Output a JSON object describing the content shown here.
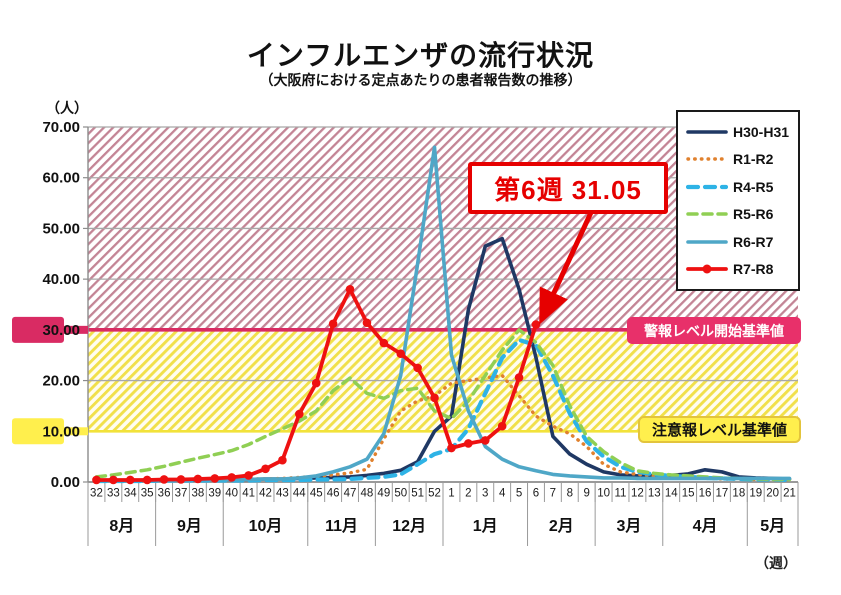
{
  "title": "インフルエンザの流行状況",
  "subtitle": "（大阪府における定点あたりの患者報告数の推移）",
  "y_axis_unit": "（人）",
  "x_axis_unit": "（週）",
  "annotation": {
    "label": "第6週 31.05",
    "week": "6",
    "value": 31.05
  },
  "thresholds": {
    "alert": {
      "value": 30,
      "label": "警報レベル開始基準値"
    },
    "caution": {
      "value": 10,
      "label": "注意報レベル基準値"
    }
  },
  "colors": {
    "alert_line": "#d92b63",
    "alert_band_hatch": "#c38495",
    "caution_line": "#f2e23b",
    "caution_band_hatch": "#f1e04a",
    "caution_band_bg": "#fffdf0",
    "grid": "#a8a8a8",
    "axis": "#8c8c8c",
    "annotation_red": "#e60000"
  },
  "chart_data": {
    "type": "line",
    "title": "インフルエンザの流行状況",
    "ylabel": "（人）",
    "xlabel": "（週）",
    "ylim": [
      0,
      70
    ],
    "grid": true,
    "legend_position": "top-right",
    "yticks": [
      "0.00",
      "10.00",
      "20.00",
      "30.00",
      "40.00",
      "50.00",
      "60.00",
      "70.00"
    ],
    "weeks": [
      "32",
      "33",
      "34",
      "35",
      "36",
      "37",
      "38",
      "39",
      "40",
      "41",
      "42",
      "43",
      "44",
      "45",
      "46",
      "47",
      "48",
      "49",
      "50",
      "51",
      "52",
      "1",
      "2",
      "3",
      "4",
      "5",
      "6",
      "7",
      "8",
      "9",
      "10",
      "11",
      "12",
      "13",
      "14",
      "15",
      "16",
      "17",
      "18",
      "19",
      "20",
      "21"
    ],
    "months": [
      {
        "label": "8月",
        "span": 4
      },
      {
        "label": "9月",
        "span": 4
      },
      {
        "label": "10月",
        "span": 5
      },
      {
        "label": "11月",
        "span": 4
      },
      {
        "label": "12月",
        "span": 4
      },
      {
        "label": "1月",
        "span": 5
      },
      {
        "label": "2月",
        "span": 4
      },
      {
        "label": "3月",
        "span": 4
      },
      {
        "label": "4月",
        "span": 5
      },
      {
        "label": "5月",
        "span": 3
      }
    ],
    "series": [
      {
        "name": "H30-H31",
        "color": "#1f3864",
        "style": "solid",
        "width": 3.6,
        "values": [
          0.3,
          0.3,
          0.3,
          0.3,
          0.4,
          0.4,
          0.4,
          0.5,
          0.5,
          0.5,
          0.6,
          0.6,
          0.7,
          0.8,
          0.9,
          1.0,
          1.3,
          1.7,
          2.3,
          4.0,
          10.0,
          13.0,
          34.0,
          46.5,
          48.0,
          38.0,
          24.5,
          9.0,
          5.5,
          3.5,
          2.0,
          1.4,
          1.2,
          1.2,
          1.3,
          1.6,
          2.4,
          2.0,
          1.0,
          0.8,
          0.7,
          0.6
        ]
      },
      {
        "name": "R1-R2",
        "color": "#e0812e",
        "style": "dotted",
        "width": 3.4,
        "values": [
          0.3,
          0.3,
          0.3,
          0.3,
          0.4,
          0.4,
          0.4,
          0.5,
          0.5,
          0.6,
          0.6,
          0.7,
          0.9,
          1.1,
          1.4,
          1.8,
          2.5,
          8.5,
          14.0,
          16.0,
          17.0,
          19.5,
          20.0,
          20.5,
          21.0,
          17.0,
          13.0,
          11.0,
          9.5,
          7.0,
          3.5,
          2.0,
          1.5,
          1.2,
          1.0,
          0.8,
          0.7,
          0.6,
          0.6,
          0.5,
          0.5,
          0.5
        ]
      },
      {
        "name": "R4-R5",
        "color": "#2eb3e6",
        "style": "dashed",
        "width": 4.2,
        "values": [
          0.2,
          0.2,
          0.2,
          0.2,
          0.3,
          0.3,
          0.3,
          0.3,
          0.3,
          0.3,
          0.4,
          0.4,
          0.4,
          0.5,
          0.5,
          0.6,
          0.8,
          1.0,
          1.5,
          3.5,
          5.5,
          6.5,
          10.5,
          17.5,
          24.5,
          28.0,
          27.0,
          21.0,
          13.5,
          8.0,
          5.0,
          3.0,
          2.0,
          1.5,
          1.2,
          1.0,
          0.8,
          0.7,
          0.6,
          0.5,
          0.5,
          0.4
        ]
      },
      {
        "name": "R5-R6",
        "color": "#90cf54",
        "style": "dashed",
        "width": 3.5,
        "values": [
          1.0,
          1.4,
          1.9,
          2.4,
          3.1,
          3.9,
          4.7,
          5.4,
          6.2,
          7.4,
          9.0,
          10.5,
          12.0,
          14.0,
          18.0,
          20.5,
          17.5,
          16.5,
          18.0,
          18.5,
          14.0,
          12.5,
          16.0,
          21.0,
          26.0,
          30.0,
          27.5,
          23.0,
          15.0,
          9.0,
          6.0,
          3.8,
          2.2,
          1.7,
          1.4,
          1.2,
          1.0,
          0.8,
          0.7,
          0.6,
          0.5,
          0.5
        ]
      },
      {
        "name": "R6-R7",
        "color": "#4fa7c7",
        "style": "solid",
        "width": 3.6,
        "values": [
          0.3,
          0.3,
          0.3,
          0.4,
          0.4,
          0.4,
          0.5,
          0.5,
          0.5,
          0.5,
          0.6,
          0.6,
          0.8,
          1.2,
          2.0,
          3.0,
          4.5,
          9.5,
          21.0,
          43.0,
          66.0,
          25.0,
          14.0,
          7.0,
          4.5,
          3.0,
          2.2,
          1.5,
          1.2,
          1.0,
          0.8,
          0.8,
          0.7,
          0.7,
          0.7,
          0.7,
          0.7,
          0.7,
          0.7,
          0.7,
          0.7,
          0.7
        ]
      },
      {
        "name": "R7-R8",
        "color": "#ee1111",
        "style": "solid",
        "width": 3.8,
        "marker": true,
        "values": [
          0.4,
          0.4,
          0.4,
          0.4,
          0.5,
          0.5,
          0.6,
          0.7,
          0.9,
          1.3,
          2.6,
          4.3,
          13.4,
          19.5,
          31.2,
          38.0,
          31.4,
          27.4,
          25.3,
          22.5,
          16.6,
          6.7,
          7.6,
          8.2,
          11.0,
          20.6,
          31.05,
          null,
          null,
          null,
          null,
          null,
          null,
          null,
          null,
          null,
          null,
          null,
          null,
          null,
          null,
          null
        ]
      }
    ]
  }
}
